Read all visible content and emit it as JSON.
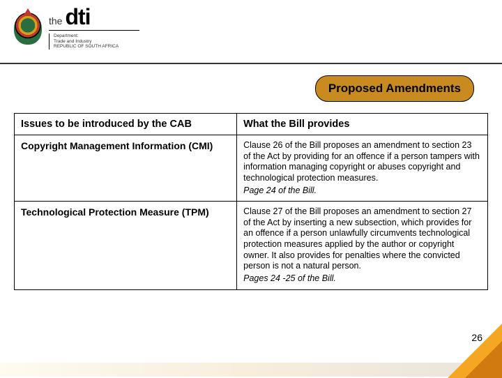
{
  "brand": {
    "the": "the",
    "dti": "dti",
    "dept_line1": "Department:",
    "dept_line2": "Trade and Industry",
    "dept_line3": "REPUBLIC OF SOUTH AFRICA"
  },
  "title": "Proposed Amendments",
  "table": {
    "headers": [
      "Issues to be introduced by the CAB",
      "What the Bill provides"
    ],
    "rows": [
      {
        "issue": "Copyright Management Information (CMI)",
        "provides": "Clause 26 of the Bill proposes an amendment to section 23 of the Act by providing for an offence if a person tampers with information managing copyright or abuses copyright and technological protection measures.",
        "pageref": "Page 24 of the Bill."
      },
      {
        "issue": "Technological Protection Measure (TPM)",
        "provides": "Clause 27 of the Bill proposes an amendment to section 27 of the Act by inserting a new subsection, which provides for an offence if a person unlawfully circumvents technological protection measures applied by the author or copyright owner. It also provides for penalties where the convicted person is not a natural person.",
        "pageref": "Pages 24 -25 of the Bill."
      }
    ]
  },
  "page_number": "26",
  "colors": {
    "lozenge_bg": "#c98b1f",
    "accent_orange": "#f5a623",
    "accent_dark": "#d17a0f"
  }
}
